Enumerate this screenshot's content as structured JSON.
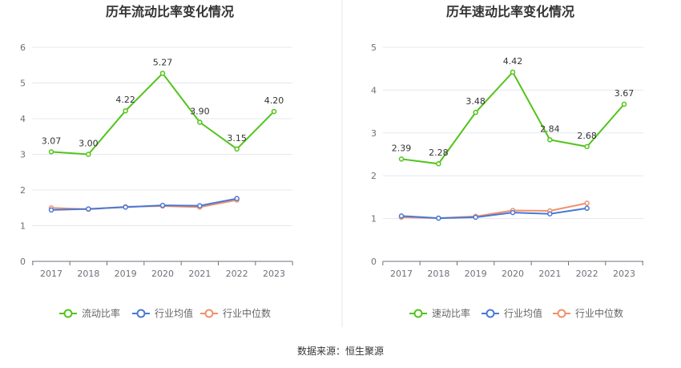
{
  "source_text": "数据来源：恒生聚源",
  "colors": {
    "primary": "#52c41a",
    "average": "#4a78d6",
    "median": "#f0916a",
    "grid": "#e6e8f0",
    "axis": "#6e7079",
    "divider": "#e6e6e6"
  },
  "chart_data": [
    {
      "type": "line",
      "title": "历年流动比率变化情况",
      "categories": [
        "2017",
        "2018",
        "2019",
        "2020",
        "2021",
        "2022",
        "2023"
      ],
      "ylim": [
        0,
        6
      ],
      "yticks": [
        0,
        1,
        2,
        3,
        4,
        5,
        6
      ],
      "series": [
        {
          "name": "流动比率",
          "color": "#52c41a",
          "values": [
            3.07,
            3.0,
            4.22,
            5.27,
            3.9,
            3.15,
            4.2
          ],
          "labels": [
            "3.07",
            "3.00",
            "4.22",
            "5.27",
            "3.90",
            "3.15",
            "4.20"
          ],
          "show_labels": true
        },
        {
          "name": "行业均值",
          "color": "#4a78d6",
          "values": [
            1.44,
            1.47,
            1.52,
            1.57,
            1.56,
            1.76,
            null
          ]
        },
        {
          "name": "行业中位数",
          "color": "#f0916a",
          "values": [
            1.5,
            1.46,
            1.53,
            1.55,
            1.52,
            1.72,
            null
          ]
        }
      ]
    },
    {
      "type": "line",
      "title": "历年速动比率变化情况",
      "categories": [
        "2017",
        "2018",
        "2019",
        "2020",
        "2021",
        "2022",
        "2023"
      ],
      "ylim": [
        0,
        5
      ],
      "yticks": [
        0,
        1,
        2,
        3,
        4,
        5
      ],
      "series": [
        {
          "name": "速动比率",
          "color": "#52c41a",
          "values": [
            2.39,
            2.28,
            3.48,
            4.42,
            2.84,
            2.68,
            3.67
          ],
          "labels": [
            "2.39",
            "2.28",
            "3.48",
            "4.42",
            "2.84",
            "2.68",
            "3.67"
          ],
          "show_labels": true
        },
        {
          "name": "行业均值",
          "color": "#4a78d6",
          "values": [
            1.06,
            1.01,
            1.03,
            1.14,
            1.11,
            1.24,
            null
          ]
        },
        {
          "name": "行业中位数",
          "color": "#f0916a",
          "values": [
            1.03,
            1.01,
            1.05,
            1.19,
            1.18,
            1.36,
            null
          ]
        }
      ]
    }
  ]
}
